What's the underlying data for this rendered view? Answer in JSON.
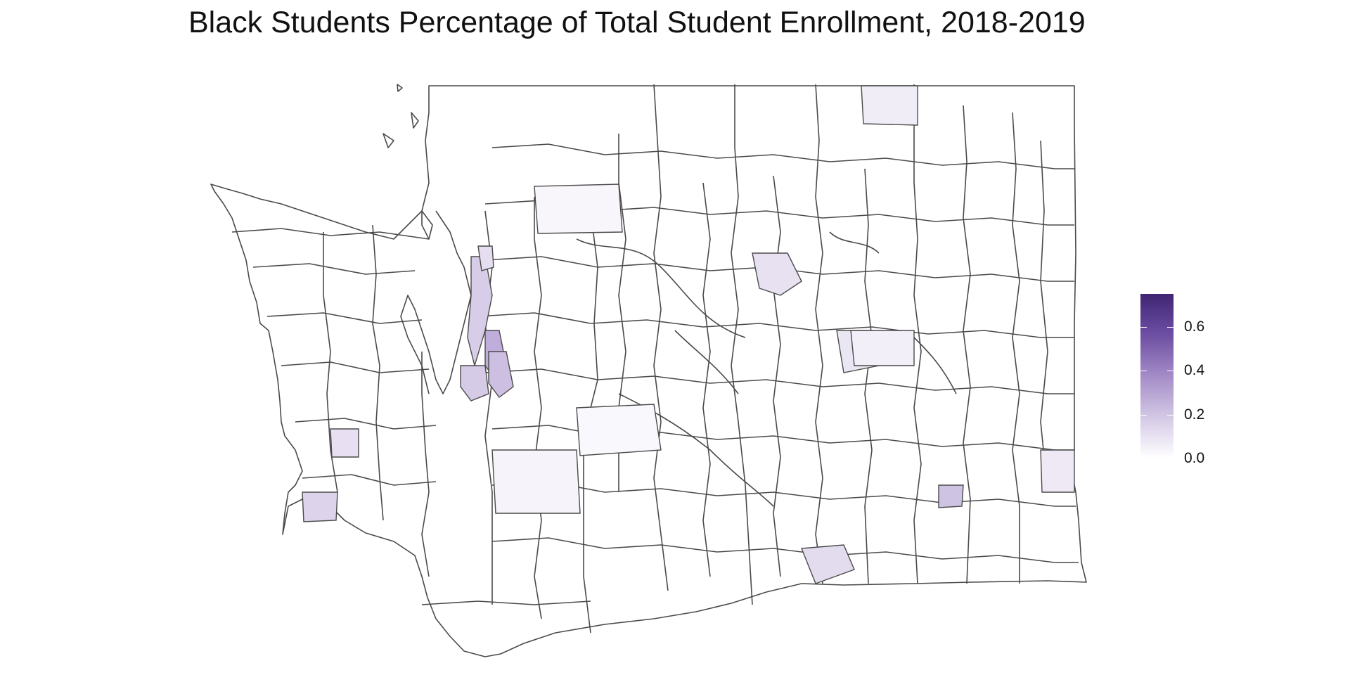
{
  "title": "Black Students Percentage of Total Student Enrollment, 2018-2019",
  "legend": {
    "min": 0.0,
    "max": 0.75,
    "low_color": "#ffffff",
    "high_color": "#3f2574",
    "ticks": [
      {
        "value": 0.0,
        "label": "0.0"
      },
      {
        "value": 0.2,
        "label": "0.2"
      },
      {
        "value": 0.4,
        "label": "0.4"
      },
      {
        "value": 0.6,
        "label": "0.6"
      }
    ]
  },
  "district_fill_levels": [
    0.0,
    0.02,
    0.05,
    0.1,
    0.2,
    0.3
  ]
}
